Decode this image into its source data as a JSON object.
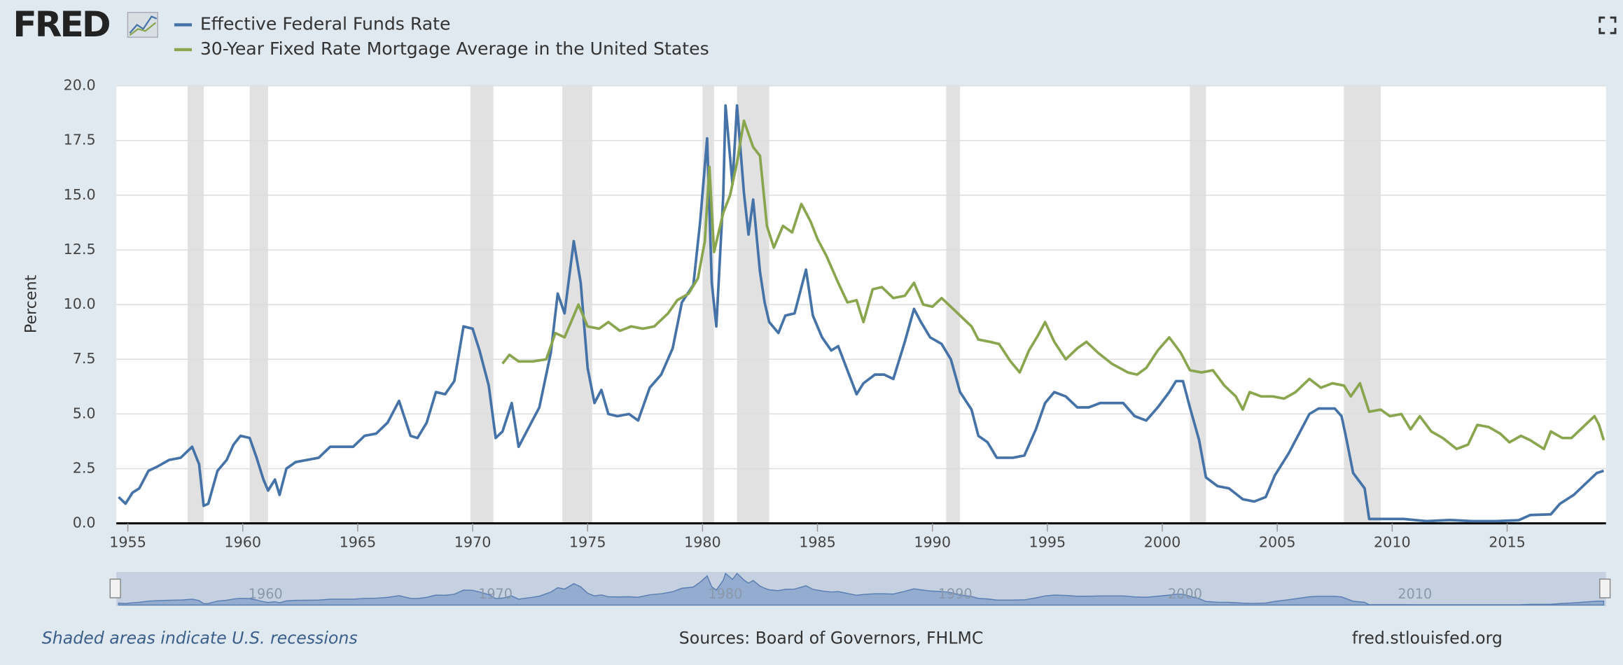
{
  "brand": "FRED",
  "chart_data": {
    "type": "line",
    "ylabel": "Percent",
    "xlim": [
      1954.5,
      2019.3
    ],
    "ylim": [
      0,
      20
    ],
    "xticks": [
      1955,
      1960,
      1965,
      1970,
      1975,
      1980,
      1985,
      1990,
      1995,
      2000,
      2005,
      2010,
      2015
    ],
    "yticks": [
      {
        "value": 0,
        "label": "0.0"
      },
      {
        "value": 2.5,
        "label": "2.5"
      },
      {
        "value": 5,
        "label": "5.0"
      },
      {
        "value": 7.5,
        "label": "7.5"
      },
      {
        "value": 10,
        "label": "10.0"
      },
      {
        "value": 12.5,
        "label": "12.5"
      },
      {
        "value": 15,
        "label": "15.0"
      },
      {
        "value": 17.5,
        "label": "17.5"
      },
      {
        "value": 20,
        "label": "20.0"
      }
    ],
    "grid": true,
    "recessions": [
      [
        1957.6,
        1958.3
      ],
      [
        1960.3,
        1961.1
      ],
      [
        1969.9,
        1970.9
      ],
      [
        1973.9,
        1975.2
      ],
      [
        1980.0,
        1980.5
      ],
      [
        1981.5,
        1982.9
      ],
      [
        1990.6,
        1991.2
      ],
      [
        2001.2,
        2001.9
      ],
      [
        2007.9,
        2009.5
      ]
    ],
    "navigator_ticks": [
      1960,
      1970,
      1980,
      1990,
      2000,
      2010
    ],
    "series": [
      {
        "name": "Effective Federal Funds Rate",
        "color": "#4572a7",
        "x": [
          1954.6,
          1954.9,
          1955.2,
          1955.5,
          1955.9,
          1956.3,
          1956.8,
          1957.3,
          1957.8,
          1958.1,
          1958.3,
          1958.5,
          1958.9,
          1959.3,
          1959.6,
          1959.9,
          1960.3,
          1960.6,
          1960.9,
          1961.1,
          1961.4,
          1961.6,
          1961.9,
          1962.3,
          1962.8,
          1963.3,
          1963.8,
          1964.3,
          1964.8,
          1965.3,
          1965.8,
          1966.3,
          1966.8,
          1967.3,
          1967.6,
          1968.0,
          1968.4,
          1968.8,
          1969.2,
          1969.6,
          1970.0,
          1970.3,
          1970.7,
          1971.0,
          1971.3,
          1971.7,
          1972.0,
          1972.5,
          1972.9,
          1973.4,
          1973.7,
          1974.0,
          1974.4,
          1974.7,
          1975.0,
          1975.3,
          1975.6,
          1975.9,
          1976.3,
          1976.8,
          1977.2,
          1977.7,
          1978.2,
          1978.7,
          1979.1,
          1979.6,
          1979.9,
          1980.2,
          1980.4,
          1980.6,
          1980.9,
          1981.0,
          1981.3,
          1981.5,
          1981.8,
          1982.0,
          1982.2,
          1982.5,
          1982.7,
          1982.9,
          1983.3,
          1983.6,
          1984.0,
          1984.5,
          1984.8,
          1985.2,
          1985.6,
          1985.9,
          1986.3,
          1986.7,
          1987.0,
          1987.5,
          1987.9,
          1988.3,
          1988.8,
          1989.2,
          1989.5,
          1989.9,
          1990.4,
          1990.8,
          1991.2,
          1991.7,
          1992.0,
          1992.4,
          1992.8,
          1993.5,
          1994.0,
          1994.5,
          1994.9,
          1995.3,
          1995.8,
          1996.3,
          1996.8,
          1997.3,
          1997.8,
          1998.3,
          1998.8,
          1999.3,
          1999.8,
          2000.3,
          2000.6,
          2000.9,
          2001.2,
          2001.6,
          2001.9,
          2002.4,
          2002.9,
          2003.5,
          2004.0,
          2004.5,
          2004.9,
          2005.5,
          2005.9,
          2006.4,
          2006.8,
          2007.5,
          2007.8,
          2008.0,
          2008.3,
          2008.8,
          2009.0,
          2009.5,
          2010.5,
          2011.5,
          2012.5,
          2013.5,
          2014.5,
          2015.5,
          2016.0,
          2016.9,
          2017.3,
          2017.9,
          2018.4,
          2018.9,
          2019.2
        ],
        "values": [
          1.2,
          0.9,
          1.4,
          1.6,
          2.4,
          2.6,
          2.9,
          3.0,
          3.5,
          2.7,
          0.8,
          0.9,
          2.4,
          2.9,
          3.6,
          4.0,
          3.9,
          3.0,
          2.0,
          1.5,
          2.0,
          1.3,
          2.5,
          2.8,
          2.9,
          3.0,
          3.5,
          3.5,
          3.5,
          4.0,
          4.1,
          4.6,
          5.6,
          4.0,
          3.9,
          4.6,
          6.0,
          5.9,
          6.5,
          9.0,
          8.9,
          7.9,
          6.3,
          3.9,
          4.2,
          5.5,
          3.5,
          4.5,
          5.3,
          7.8,
          10.5,
          9.6,
          12.9,
          11.0,
          7.1,
          5.5,
          6.1,
          5.0,
          4.9,
          5.0,
          4.7,
          6.2,
          6.8,
          8.0,
          10.1,
          10.9,
          13.8,
          17.6,
          11.0,
          9.0,
          15.0,
          19.1,
          15.5,
          19.1,
          15.1,
          13.2,
          14.8,
          11.5,
          10.1,
          9.2,
          8.7,
          9.5,
          9.6,
          11.6,
          9.5,
          8.5,
          7.9,
          8.1,
          7.0,
          5.9,
          6.4,
          6.8,
          6.8,
          6.6,
          8.3,
          9.8,
          9.2,
          8.5,
          8.2,
          7.5,
          6.0,
          5.2,
          4.0,
          3.7,
          3.0,
          3.0,
          3.1,
          4.3,
          5.5,
          6.0,
          5.8,
          5.3,
          5.3,
          5.5,
          5.5,
          5.5,
          4.9,
          4.7,
          5.3,
          6.0,
          6.5,
          6.5,
          5.3,
          3.8,
          2.1,
          1.7,
          1.6,
          1.1,
          1.0,
          1.2,
          2.2,
          3.2,
          4.0,
          5.0,
          5.25,
          5.25,
          4.9,
          3.9,
          2.3,
          1.6,
          0.2,
          0.2,
          0.2,
          0.1,
          0.15,
          0.1,
          0.1,
          0.14,
          0.38,
          0.41,
          0.9,
          1.3,
          1.8,
          2.3,
          2.4
        ]
      },
      {
        "name": "30-Year Fixed Rate Mortgage Average in the United States",
        "color": "#89a54e",
        "x": [
          1971.3,
          1971.6,
          1972.0,
          1972.6,
          1973.2,
          1973.6,
          1974.0,
          1974.6,
          1975.0,
          1975.5,
          1975.9,
          1976.4,
          1976.9,
          1977.4,
          1977.9,
          1978.5,
          1978.9,
          1979.4,
          1979.8,
          1980.1,
          1980.3,
          1980.5,
          1980.9,
          1981.2,
          1981.5,
          1981.8,
          1982.2,
          1982.5,
          1982.8,
          1983.1,
          1983.5,
          1983.9,
          1984.3,
          1984.7,
          1985.0,
          1985.4,
          1985.9,
          1986.3,
          1986.7,
          1987.0,
          1987.4,
          1987.8,
          1988.3,
          1988.8,
          1989.2,
          1989.6,
          1990.0,
          1990.4,
          1990.8,
          1991.2,
          1991.7,
          1992.0,
          1992.5,
          1992.9,
          1993.4,
          1993.8,
          1994.2,
          1994.6,
          1994.9,
          1995.3,
          1995.8,
          1996.3,
          1996.7,
          1997.2,
          1997.8,
          1998.5,
          1998.9,
          1999.3,
          1999.8,
          2000.3,
          2000.8,
          2001.2,
          2001.7,
          2002.2,
          2002.7,
          2003.2,
          2003.5,
          2003.8,
          2004.3,
          2004.8,
          2005.3,
          2005.8,
          2006.4,
          2006.9,
          2007.4,
          2007.9,
          2008.2,
          2008.6,
          2009.0,
          2009.5,
          2009.9,
          2010.4,
          2010.8,
          2011.2,
          2011.7,
          2012.2,
          2012.8,
          2013.3,
          2013.7,
          2014.2,
          2014.7,
          2015.1,
          2015.6,
          2016.0,
          2016.6,
          2016.9,
          2017.4,
          2017.8,
          2018.3,
          2018.8,
          2019.0,
          2019.2
        ],
        "values": [
          7.3,
          7.7,
          7.4,
          7.4,
          7.5,
          8.7,
          8.5,
          10.0,
          9.0,
          8.9,
          9.2,
          8.8,
          9.0,
          8.9,
          9.0,
          9.6,
          10.2,
          10.5,
          11.2,
          12.9,
          16.3,
          12.4,
          14.2,
          15.0,
          16.5,
          18.4,
          17.2,
          16.8,
          13.6,
          12.6,
          13.6,
          13.3,
          14.6,
          13.8,
          13.0,
          12.2,
          11.0,
          10.1,
          10.2,
          9.2,
          10.7,
          10.8,
          10.3,
          10.4,
          11.0,
          10.0,
          9.9,
          10.3,
          9.9,
          9.5,
          9.0,
          8.4,
          8.3,
          8.2,
          7.4,
          6.9,
          7.9,
          8.6,
          9.2,
          8.3,
          7.5,
          8.0,
          8.3,
          7.8,
          7.3,
          6.9,
          6.8,
          7.1,
          7.9,
          8.5,
          7.8,
          7.0,
          6.9,
          7.0,
          6.3,
          5.8,
          5.2,
          6.0,
          5.8,
          5.8,
          5.7,
          6.0,
          6.6,
          6.2,
          6.4,
          6.3,
          5.8,
          6.4,
          5.1,
          5.2,
          4.9,
          5.0,
          4.3,
          4.9,
          4.2,
          3.9,
          3.4,
          3.6,
          4.5,
          4.4,
          4.1,
          3.7,
          4.0,
          3.8,
          3.4,
          4.2,
          3.9,
          3.9,
          4.4,
          4.9,
          4.5,
          3.8
        ]
      }
    ]
  },
  "footer": {
    "note": "Shaded areas indicate U.S. recessions",
    "sources": "Sources: Board of Governors, FHLMC",
    "site": "fred.stlouisfed.org"
  }
}
